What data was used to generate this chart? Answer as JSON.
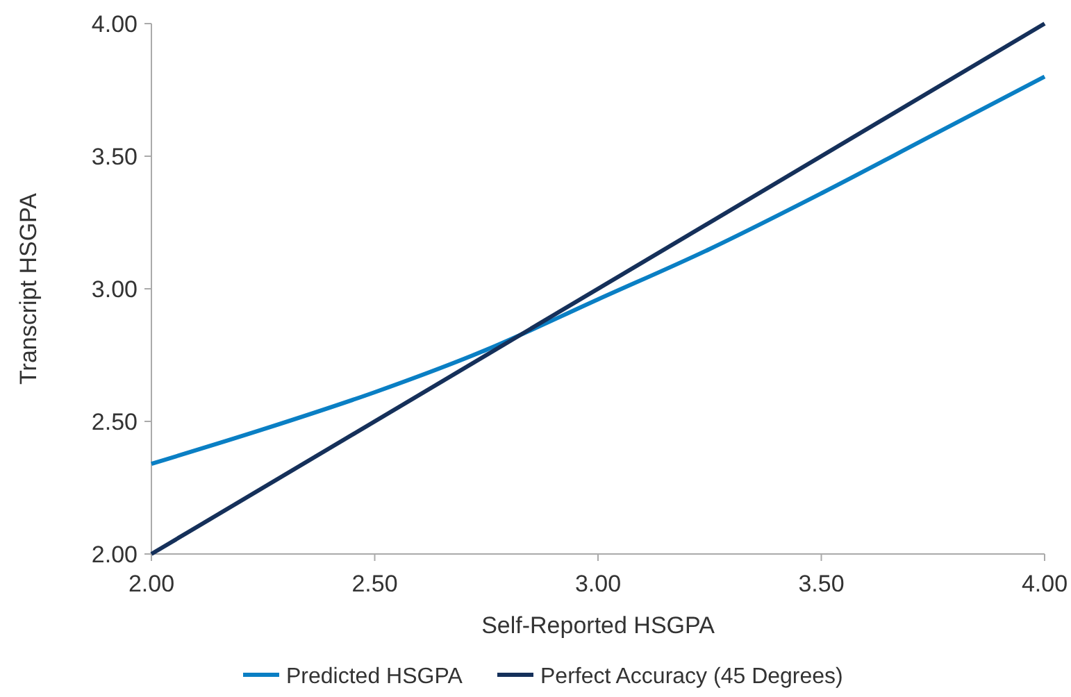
{
  "chart_data": {
    "type": "line",
    "xlabel": "Self-Reported HSGPA",
    "ylabel": "Transcript HSGPA",
    "x": [
      2,
      2.25,
      2.5,
      2.75,
      3,
      3.25,
      3.5,
      3.75,
      4
    ],
    "series": [
      {
        "name": "Predicted HSGPA",
        "color": "#0a7fc4",
        "values": [
          2.34,
          2.47,
          2.61,
          2.77,
          2.96,
          3.15,
          3.36,
          3.58,
          3.8
        ]
      },
      {
        "name": "Perfect Accuracy (45 Degrees)",
        "color": "#15305a",
        "x": [
          2,
          4
        ],
        "values": [
          2,
          4
        ]
      }
    ],
    "xlim": [
      2,
      4
    ],
    "ylim": [
      2,
      4
    ],
    "xticks": [
      {
        "value": 2,
        "label": "2.00"
      },
      {
        "value": 2.5,
        "label": "2.50"
      },
      {
        "value": 3,
        "label": "3.00"
      },
      {
        "value": 3.5,
        "label": "3.50"
      },
      {
        "value": 4,
        "label": "4.00"
      }
    ],
    "yticks": [
      {
        "value": 2,
        "label": "2.00"
      },
      {
        "value": 2.5,
        "label": "2.50"
      },
      {
        "value": 3,
        "label": "3.00"
      },
      {
        "value": 3.5,
        "label": "3.50"
      },
      {
        "value": 4,
        "label": "4.00"
      }
    ],
    "grid": false,
    "legend": "bottom",
    "marker": "none",
    "line_style": "solid"
  }
}
